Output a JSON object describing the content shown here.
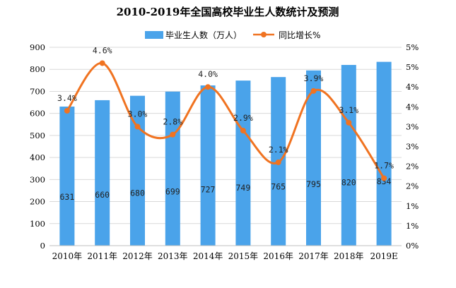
{
  "chart_data": {
    "type": "bar",
    "title": "2010-2019年全国高校毕业生人数统计及预测",
    "categories": [
      "2010年",
      "2011年",
      "2012年",
      "2013年",
      "2014年",
      "2015年",
      "2016年",
      "2017年",
      "2018年",
      "2019E"
    ],
    "series": [
      {
        "name": "毕业生人数（万人）",
        "type": "bar",
        "axis": "left",
        "values": [
          631,
          660,
          680,
          699,
          727,
          749,
          765,
          795,
          820,
          834
        ],
        "labels": [
          "631",
          "660",
          "680",
          "699",
          "727",
          "749",
          "765",
          "795",
          "820",
          "834"
        ]
      },
      {
        "name": "同比增长%",
        "type": "line",
        "axis": "right",
        "values": [
          3.4,
          4.6,
          3.0,
          2.8,
          4.0,
          2.9,
          2.1,
          3.9,
          3.1,
          1.7
        ],
        "labels": [
          "3.4%",
          "4.6%",
          "3.0%",
          "2.8%",
          "4.0%",
          "2.9%",
          "2.1%",
          "3.9%",
          "3.1%",
          "1.7%"
        ]
      }
    ],
    "ylim_left": [
      0,
      900
    ],
    "yticks_left": [
      "0",
      "100",
      "200",
      "300",
      "400",
      "500",
      "600",
      "700",
      "800",
      "900"
    ],
    "ylim_right": [
      0,
      5
    ],
    "yticks_right": [
      "0%",
      "1%",
      "1%",
      "2%",
      "2%",
      "3%",
      "3%",
      "4%",
      "4%",
      "5%",
      "5%"
    ],
    "legend_position": "top-center",
    "colors": {
      "bar": "#4aa3ea",
      "line": "#f07321",
      "grid": "#d9d9d9"
    }
  }
}
